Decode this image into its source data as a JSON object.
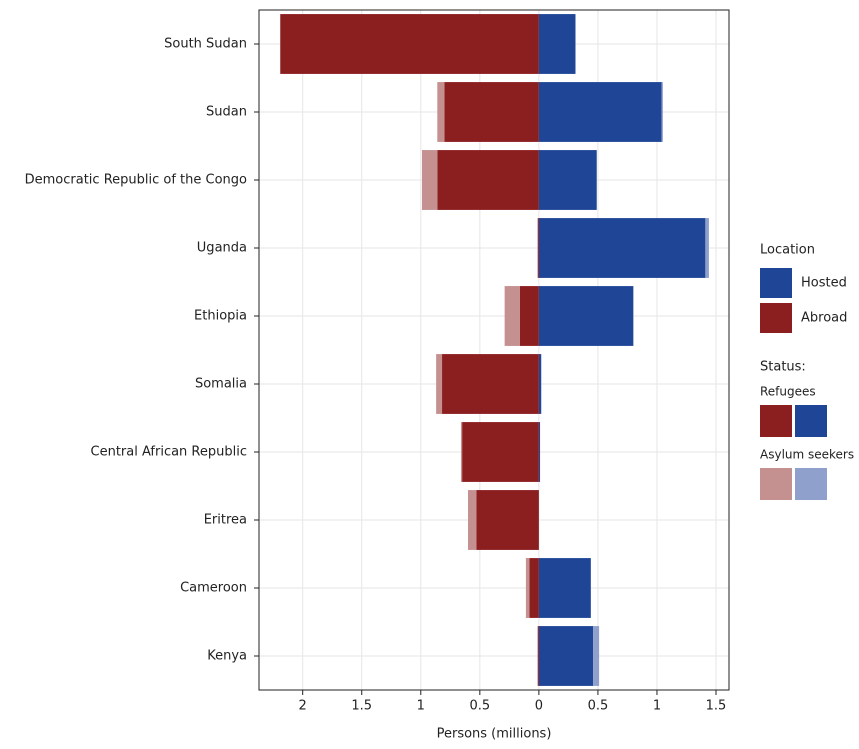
{
  "chart_data": {
    "type": "diverging-bar",
    "categories": [
      "South Sudan",
      "Sudan",
      "Democratic Republic of the Congo",
      "Uganda",
      "Ethiopia",
      "Somalia",
      "Central African Republic",
      "Eritrea",
      "Cameroon",
      "Kenya"
    ],
    "series": [
      {
        "location": "Hosted",
        "status": "Refugees",
        "color": "#1f4597",
        "values": [
          0.31,
          1.04,
          0.49,
          1.41,
          0.8,
          0.02,
          0.01,
          0.0,
          0.44,
          0.46
        ]
      },
      {
        "location": "Hosted",
        "status": "Asylum seekers",
        "color": "#8fa0cc",
        "values": [
          0.0,
          0.01,
          0.0,
          0.03,
          0.0,
          0.0,
          0.0,
          0.0,
          0.0,
          0.05
        ]
      },
      {
        "location": "Abroad",
        "status": "Refugees",
        "color": "#8b1e1e",
        "values": [
          -2.19,
          -0.8,
          -0.86,
          -0.01,
          -0.16,
          -0.82,
          -0.65,
          -0.53,
          -0.08,
          -0.01
        ]
      },
      {
        "location": "Abroad",
        "status": "Asylum seekers",
        "color": "#c49090",
        "values": [
          0.0,
          -0.06,
          -0.13,
          0.0,
          -0.13,
          -0.05,
          -0.01,
          -0.07,
          -0.03,
          0.0
        ]
      }
    ],
    "x_label": "Persons (millions)",
    "xlim": [
      -2.37,
      1.61
    ],
    "xticks": [
      {
        "value": -2,
        "label": "2"
      },
      {
        "value": -1.5,
        "label": "1.5"
      },
      {
        "value": -1,
        "label": "1"
      },
      {
        "value": -0.5,
        "label": "0.5"
      },
      0,
      0.5,
      1,
      1.5
    ],
    "grid": true,
    "legend_location_title": "Location",
    "legend_status_title": "Status:"
  }
}
